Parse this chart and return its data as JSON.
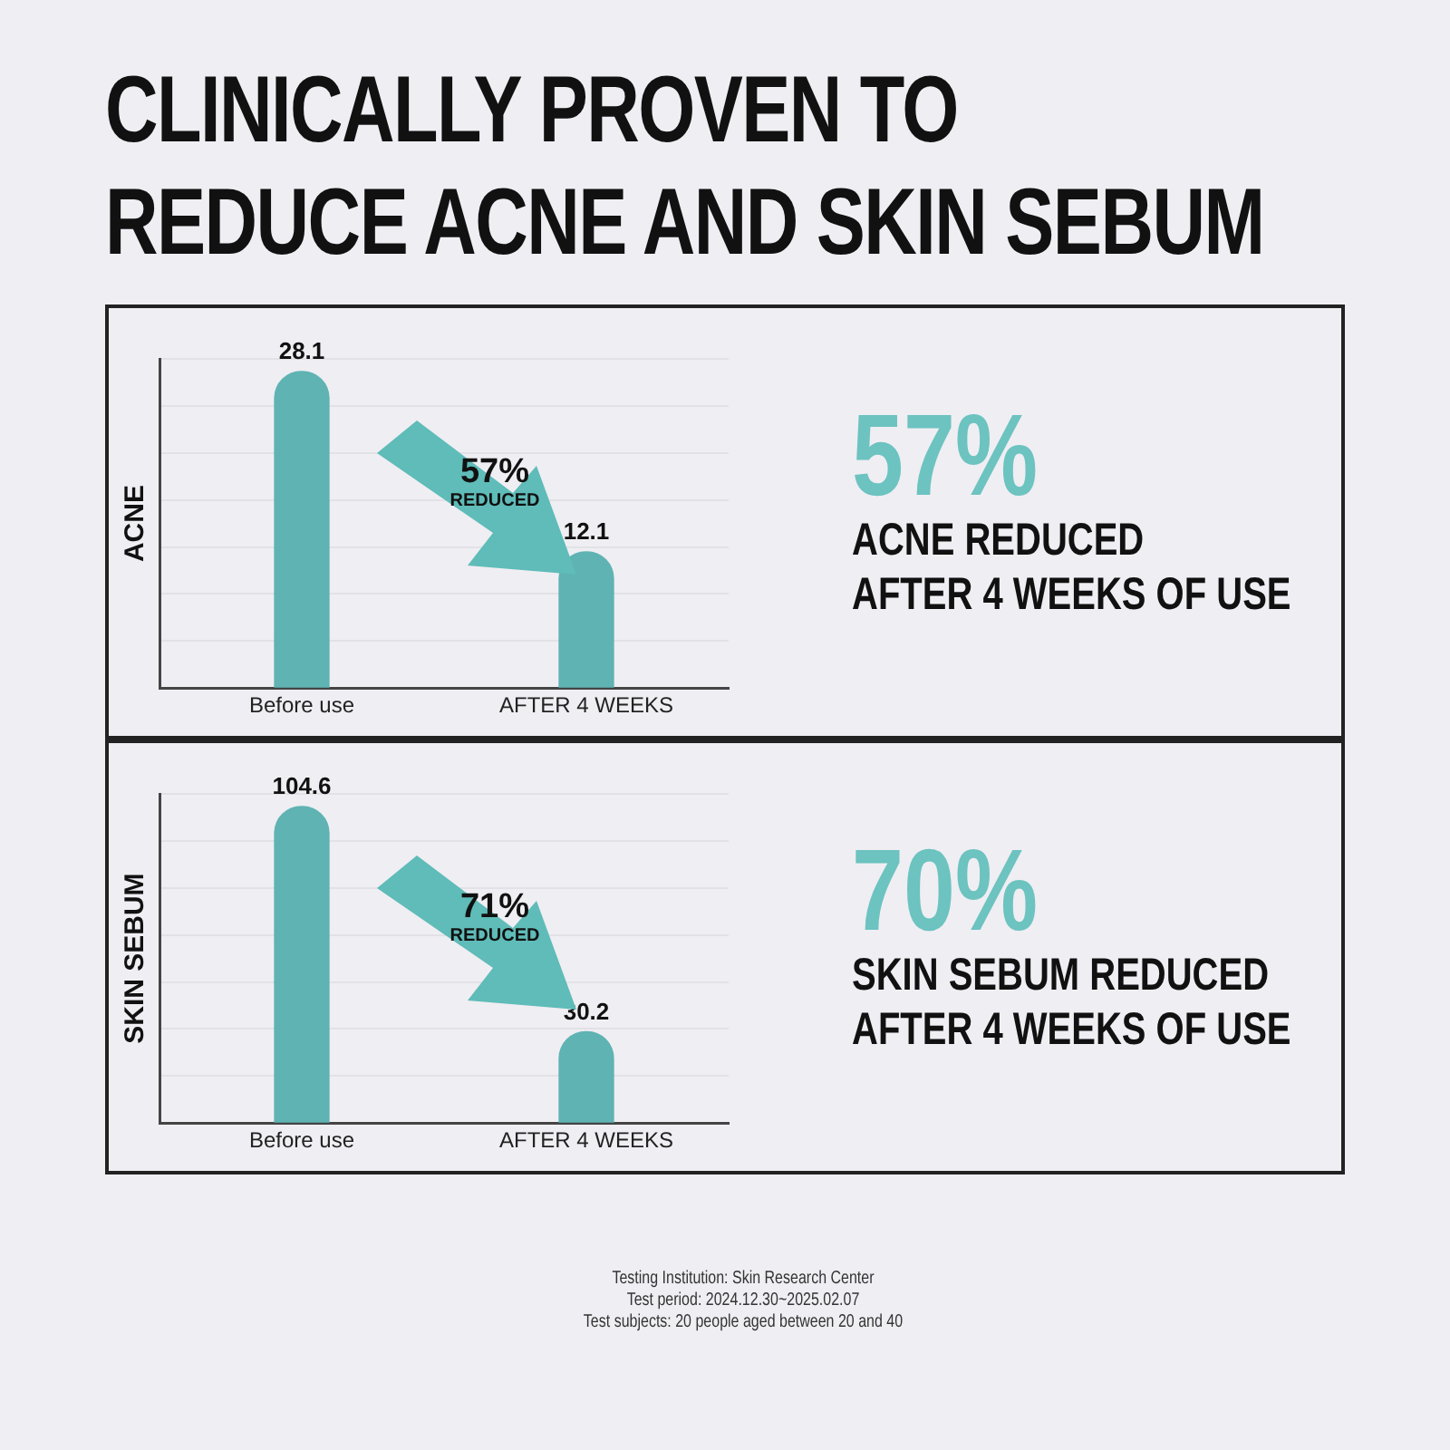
{
  "chart_data": [
    {
      "type": "bar",
      "title": "CLINICALLY PROVEN TO REDUCE ACNE AND SKIN SEBUM",
      "ylabel": "ACNE",
      "categories": [
        "Before use",
        "AFTER 4 WEEKS"
      ],
      "values": [
        28.1,
        12.1
      ],
      "color": "#5fb3b3",
      "data_labels": true,
      "grid": "y",
      "tick_labels": "x",
      "annotations": [
        "57%",
        "REDUCED",
        "57%",
        "ACNE REDUCED",
        "AFTER 4 WEEKS OF USE"
      ]
    },
    {
      "type": "bar",
      "ylabel": "SKIN SEBUM",
      "categories": [
        "Before use",
        "AFTER 4 WEEKS"
      ],
      "values": [
        104.6,
        30.2
      ],
      "color": "#5fb3b3",
      "data_labels": true,
      "grid": "y",
      "tick_labels": "x",
      "annotations": [
        "71%",
        "REDUCED",
        "70%",
        "SKIN SEBUM REDUCED",
        "AFTER 4 WEEKS OF USE",
        "Testing Institution: Skin Research Center",
        "Test period: 2024.12.30~2025.02.07",
        "Test subjects: 20 people aged between 20 and 40"
      ]
    }
  ]
}
